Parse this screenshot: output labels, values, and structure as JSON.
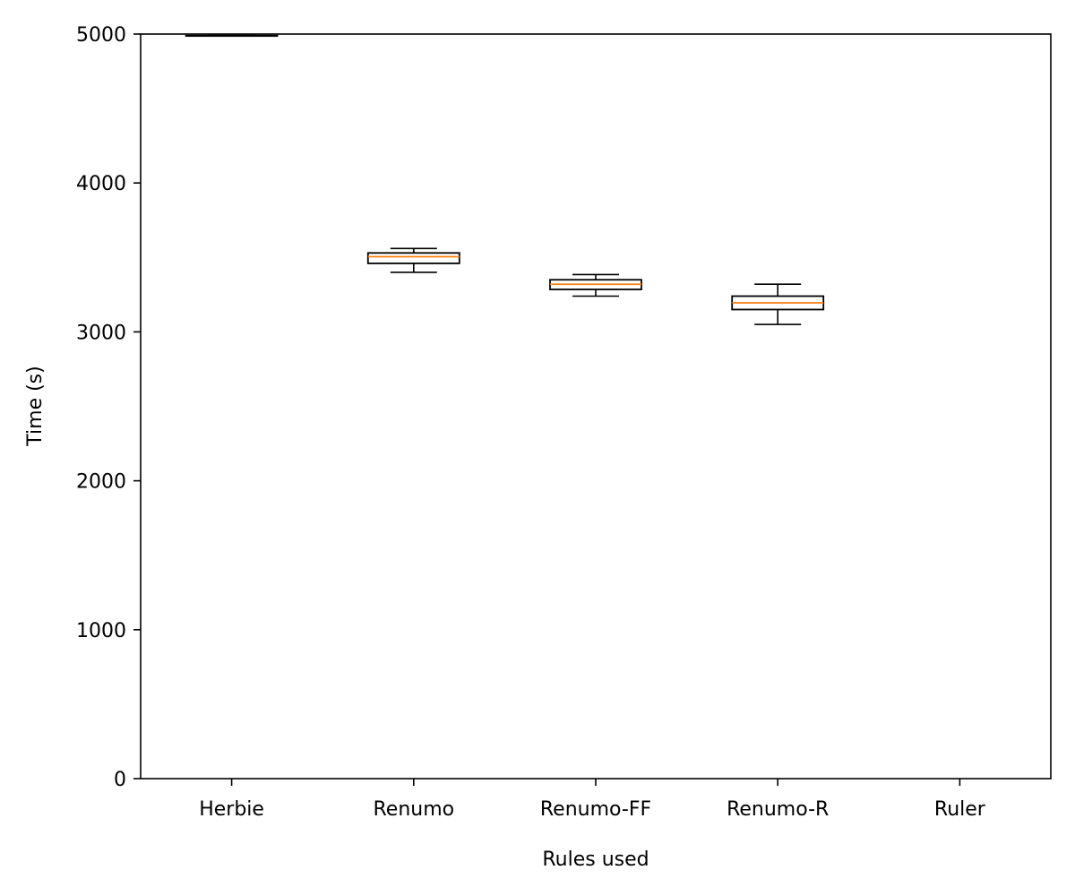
{
  "chart_data": {
    "type": "box",
    "title": "",
    "xlabel": "Rules used",
    "ylabel": "Time (s)",
    "ylim": [
      0,
      5000
    ],
    "yticks": [
      0,
      1000,
      2000,
      3000,
      4000,
      5000
    ],
    "grid": false,
    "categories": [
      "Herbie",
      "Renumo",
      "Renumo-FF",
      "Renumo-R",
      "Ruler"
    ],
    "boxes": [
      {
        "category": "Herbie",
        "whislo": 4990,
        "q1": 4990,
        "med": 4990,
        "q3": 4990,
        "whishi": 4990
      },
      {
        "category": "Renumo",
        "whislo": 3400,
        "q1": 3460,
        "med": 3505,
        "q3": 3530,
        "whishi": 3560
      },
      {
        "category": "Renumo-FF",
        "whislo": 3240,
        "q1": 3285,
        "med": 3320,
        "q3": 3350,
        "whishi": 3385
      },
      {
        "category": "Renumo-R",
        "whislo": 3050,
        "q1": 3150,
        "med": 3195,
        "q3": 3240,
        "whishi": 3320
      },
      {
        "category": "Ruler",
        "whislo": null,
        "q1": null,
        "med": null,
        "q3": null,
        "whishi": null
      }
    ],
    "colors": {
      "box": "#000000",
      "median": "#ff7f0e"
    }
  }
}
